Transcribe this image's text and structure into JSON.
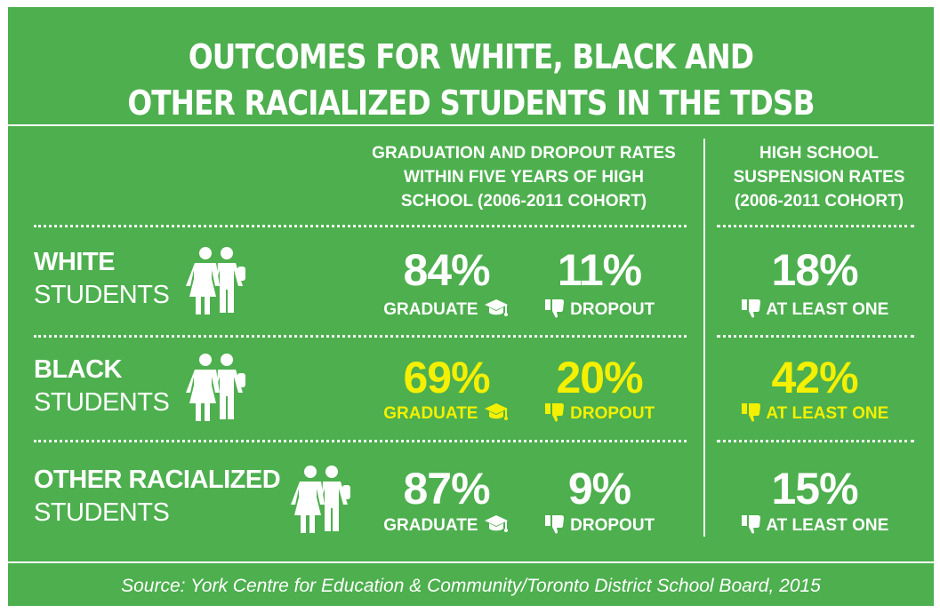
{
  "title_line1": "OUTCOMES FOR WHITE, BLACK AND",
  "title_line2": "OTHER RACIALIZED STUDENTS IN THE TDSB",
  "col_grad_head": [
    "GRADUATION AND DROPOUT RATES",
    "WITHIN FIVE YEARS OF HIGH",
    "SCHOOL (2006-2011 COHORT)"
  ],
  "col_susp_head": [
    "HIGH SCHOOL",
    "SUSPENSION RATES",
    "(2006-2011 COHORT)"
  ],
  "rows": [
    {
      "label_bold": "WHITE",
      "label_plain": "STUDENTS",
      "graduate": "84%",
      "dropout": "11%",
      "suspension": "18%"
    },
    {
      "label_bold": "BLACK",
      "label_plain": "STUDENTS",
      "graduate": "69%",
      "dropout": "20%",
      "suspension": "42%"
    },
    {
      "label_bold": "OTHER RACIALIZED",
      "label_plain": "STUDENTS",
      "graduate": "87%",
      "dropout": "9%",
      "suspension": "15%"
    }
  ],
  "metric_labels": {
    "graduate": "GRADUATE",
    "dropout": "DROPOUT",
    "suspension": "AT LEAST ONE"
  },
  "source": "Source: York Centre for Education & Community/Toronto District School Board, 2015",
  "colors": {
    "background": "#4daf4e",
    "text": "#ffffff",
    "highlight": "#f4f000"
  },
  "icons": {
    "students": "students-pair-icon",
    "graduate": "graduation-cap-icon",
    "dropout": "thumbs-down-icon",
    "suspension": "thumbs-down-icon"
  },
  "chart_data": {
    "type": "table",
    "title": "OUTCOMES FOR WHITE, BLACK AND OTHER RACIALIZED STUDENTS IN THE TDSB",
    "columns": [
      "GRADUATE",
      "DROPOUT",
      "AT LEAST ONE"
    ],
    "categories": [
      "WHITE STUDENTS",
      "BLACK STUDENTS",
      "OTHER RACIALIZED STUDENTS"
    ],
    "series": [
      {
        "name": "GRADUATE",
        "values": [
          84,
          69,
          87
        ]
      },
      {
        "name": "DROPOUT",
        "values": [
          11,
          20,
          9
        ]
      },
      {
        "name": "AT LEAST ONE",
        "values": [
          18,
          42,
          15
        ]
      }
    ],
    "unit": "%",
    "highlighted_row": "BLACK STUDENTS"
  }
}
